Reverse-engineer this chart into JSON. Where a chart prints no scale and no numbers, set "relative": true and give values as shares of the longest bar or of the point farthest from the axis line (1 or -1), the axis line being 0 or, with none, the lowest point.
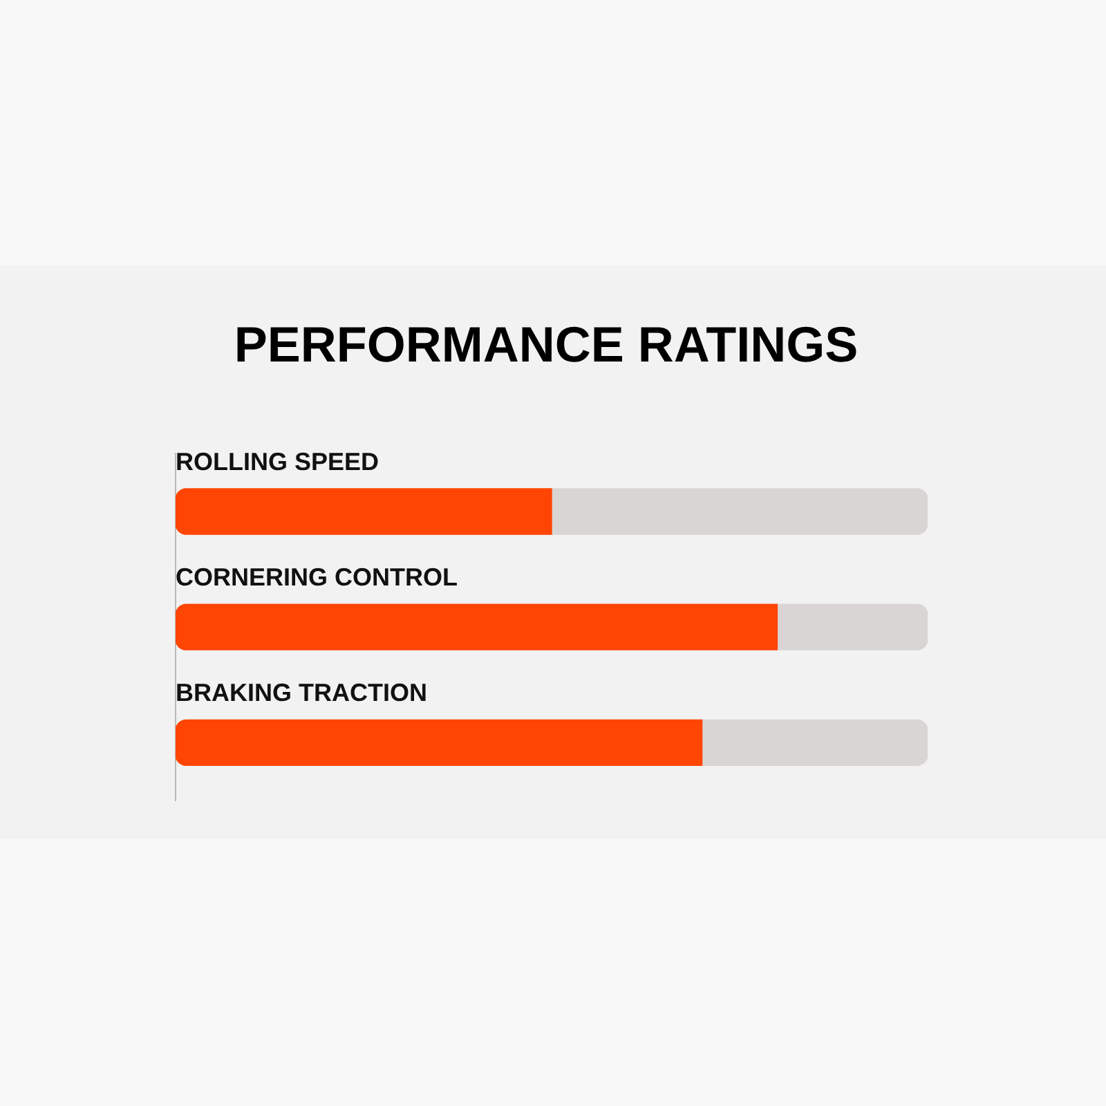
{
  "chart_data": {
    "type": "bar",
    "title": "PERFORMANCE RATINGS",
    "orientation": "horizontal",
    "stacked": true,
    "relative": true,
    "legend": false,
    "categories": [
      "ROLLING SPEED",
      "CORNERING CONTROL",
      "BRAKING TRACTION"
    ],
    "series": [
      {
        "color": "#ff4503",
        "values": [
          0.5,
          0.8,
          0.7
        ]
      },
      {
        "color": "#d9d5d4",
        "values": [
          0.5,
          0.2,
          0.3
        ]
      }
    ]
  }
}
